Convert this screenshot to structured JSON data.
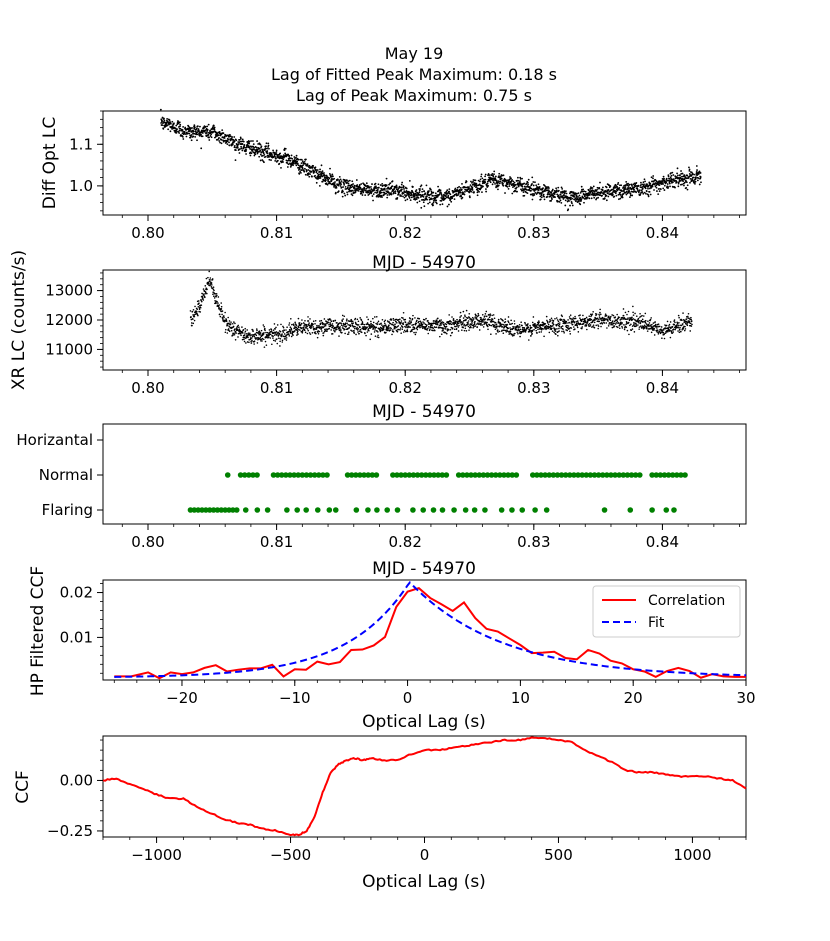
{
  "chart_data": [
    {
      "type": "scatter",
      "id": "p1",
      "title_lines": [
        "May 19",
        "Lag of Fitted Peak Maximum: 0.18 s",
        "Lag of Peak Maximum: 0.75 s"
      ],
      "ylabel": "Diff Opt LC",
      "xlabel": "MJD - 54970",
      "xlim": [
        0.7965,
        0.8465
      ],
      "ylim": [
        0.93,
        1.18
      ],
      "xticks": [
        0.8,
        0.81,
        0.82,
        0.83,
        0.84
      ],
      "xtick_labels": [
        "0.80",
        "0.81",
        "0.82",
        "0.83",
        "0.84"
      ],
      "yticks": [
        1.0,
        1.1
      ],
      "ytick_labels": [
        "1.0",
        "1.1"
      ],
      "color": "#000000",
      "trend_x": [
        0.801,
        0.803,
        0.805,
        0.807,
        0.809,
        0.811,
        0.813,
        0.815,
        0.817,
        0.819,
        0.821,
        0.823,
        0.825,
        0.827,
        0.829,
        0.831,
        0.833,
        0.835,
        0.837,
        0.839,
        0.841,
        0.843
      ],
      "trend_y": [
        1.155,
        1.13,
        1.13,
        1.1,
        1.08,
        1.065,
        1.03,
        1.0,
        0.99,
        0.99,
        0.98,
        0.97,
        0.995,
        1.015,
        1.0,
        0.985,
        0.97,
        0.985,
        0.99,
        1.0,
        1.015,
        1.025
      ],
      "n_points": 2600,
      "noise": 0.009
    },
    {
      "type": "scatter",
      "id": "p2",
      "ylabel": "XR LC (counts/s)",
      "xlabel": "MJD - 54970",
      "xlim": [
        0.7965,
        0.8465
      ],
      "ylim": [
        10300,
        13700
      ],
      "xticks": [
        0.8,
        0.81,
        0.82,
        0.83,
        0.84
      ],
      "xtick_labels": [
        "0.80",
        "0.81",
        "0.82",
        "0.83",
        "0.84"
      ],
      "yticks": [
        11000,
        12000,
        13000
      ],
      "ytick_labels": [
        "11000",
        "12000",
        "13000"
      ],
      "color": "#000000",
      "trend_x": [
        0.8033,
        0.804,
        0.8048,
        0.8053,
        0.806,
        0.8075,
        0.81,
        0.812,
        0.815,
        0.818,
        0.82,
        0.823,
        0.826,
        0.829,
        0.832,
        0.835,
        0.838,
        0.84,
        0.8423
      ],
      "trend_y": [
        12100,
        12400,
        13400,
        12700,
        11900,
        11450,
        11500,
        11750,
        11800,
        11750,
        11850,
        11800,
        12000,
        11650,
        11850,
        12000,
        11950,
        11600,
        12000
      ],
      "n_points": 2300,
      "noise": 140
    },
    {
      "type": "scatter",
      "id": "p3",
      "xlabel": "MJD - 54970",
      "xlim": [
        0.7965,
        0.8465
      ],
      "categories": [
        "Flaring",
        "Normal",
        "Horizantal"
      ],
      "xticks": [
        0.8,
        0.81,
        0.82,
        0.83,
        0.84
      ],
      "xtick_labels": [
        "0.80",
        "0.81",
        "0.82",
        "0.83",
        "0.84"
      ],
      "color": "#008000",
      "flaring_x": [
        0.8033,
        0.8036,
        0.8039,
        0.8042,
        0.8045,
        0.8048,
        0.8051,
        0.8054,
        0.8057,
        0.806,
        0.8063,
        0.8066,
        0.8069,
        0.8076,
        0.8085,
        0.8093,
        0.8108,
        0.8116,
        0.8123,
        0.8132,
        0.8141,
        0.8146,
        0.8162,
        0.8171,
        0.8178,
        0.8186,
        0.8194,
        0.8206,
        0.8214,
        0.8222,
        0.8229,
        0.8238,
        0.8247,
        0.8254,
        0.8262,
        0.8275,
        0.8283,
        0.8291,
        0.8301,
        0.831,
        0.8355,
        0.8375,
        0.8392,
        0.8403,
        0.8409
      ],
      "normal_x_start": 0.8072,
      "normal_x_end": 0.8418,
      "normal_isolated": [
        0.8062
      ],
      "normal_gaps": [
        [
          0.8085,
          0.8095
        ],
        [
          0.8142,
          0.8154
        ],
        [
          0.8178,
          0.8188
        ],
        [
          0.8232,
          0.824
        ],
        [
          0.8288,
          0.8296
        ],
        [
          0.8385,
          0.8391
        ]
      ]
    },
    {
      "type": "line",
      "id": "p4",
      "ylabel": "HP Filtered CCF",
      "xlabel": "Optical Lag (s)",
      "xlim": [
        -27,
        30
      ],
      "ylim": [
        0.0005,
        0.0228
      ],
      "xticks": [
        -20,
        -10,
        0,
        10,
        20,
        30
      ],
      "xtick_labels": [
        "−20",
        "−10",
        "0",
        "10",
        "20",
        "30"
      ],
      "yticks": [
        0.01,
        0.02
      ],
      "ytick_labels": [
        "0.01",
        "0.02"
      ],
      "legend": [
        "Correlation",
        "Fit"
      ],
      "series": [
        {
          "name": "Correlation",
          "color": "#ff0000",
          "x": [
            -26,
            -24.5,
            -23,
            -22,
            -21,
            -20,
            -19,
            -18,
            -17,
            -16,
            -15,
            -14,
            -13,
            -12,
            -11,
            -10,
            -9,
            -8,
            -7,
            -6,
            -5,
            -4,
            -3,
            -2,
            -1,
            0,
            1,
            2,
            3,
            4,
            5,
            6,
            7,
            8,
            9,
            10,
            11,
            12,
            13,
            14,
            15,
            16,
            17,
            18,
            19,
            20,
            21,
            22,
            23,
            24,
            25,
            26,
            27,
            28,
            29,
            30
          ],
          "y": [
            0.0013,
            0.0013,
            0.0022,
            0.0009,
            0.0022,
            0.0018,
            0.0022,
            0.0032,
            0.0038,
            0.0024,
            0.0028,
            0.0031,
            0.0031,
            0.0039,
            0.0013,
            0.0029,
            0.0028,
            0.0046,
            0.004,
            0.0045,
            0.0072,
            0.0073,
            0.0082,
            0.0101,
            0.0168,
            0.0202,
            0.021,
            0.0188,
            0.0174,
            0.0159,
            0.0178,
            0.0143,
            0.0119,
            0.0113,
            0.0098,
            0.0083,
            0.0065,
            0.0066,
            0.0068,
            0.0054,
            0.0051,
            0.0072,
            0.0064,
            0.0048,
            0.0042,
            0.0029,
            0.0024,
            0.0012,
            0.0025,
            0.0032,
            0.0025,
            0.001,
            0.0018,
            0.0013,
            0.0012,
            0.0012
          ]
        },
        {
          "name": "Fit",
          "color": "#0000ff",
          "model": "exponential",
          "base": 0.001,
          "amp": 0.0213,
          "center": 0.18,
          "tau_left": 5.5,
          "tau_right": 8.2
        }
      ]
    },
    {
      "type": "line",
      "id": "p5",
      "ylabel": "CCF",
      "xlabel": "Optical Lag (s)",
      "xlim": [
        -1200,
        1200
      ],
      "ylim": [
        -0.28,
        0.22
      ],
      "xticks": [
        -1000,
        -500,
        0,
        500,
        1000
      ],
      "xtick_labels": [
        "−1000",
        "−500",
        "0",
        "500",
        "1000"
      ],
      "yticks": [
        -0.25,
        0.0
      ],
      "ytick_labels": [
        "−0.25",
        "0.00"
      ],
      "series": [
        {
          "name": "CCF",
          "color": "#ff0000",
          "x": [
            -1200,
            -1150,
            -1100,
            -1050,
            -1000,
            -950,
            -900,
            -850,
            -800,
            -750,
            -700,
            -650,
            -600,
            -550,
            -500,
            -470,
            -440,
            -410,
            -380,
            -350,
            -320,
            -290,
            -260,
            -230,
            -200,
            -150,
            -100,
            -50,
            0,
            50,
            100,
            150,
            200,
            250,
            300,
            350,
            400,
            450,
            500,
            550,
            600,
            650,
            700,
            750,
            800,
            850,
            900,
            950,
            1000,
            1050,
            1100,
            1150,
            1200
          ],
          "y": [
            0.0,
            0.01,
            -0.02,
            -0.04,
            -0.07,
            -0.09,
            -0.09,
            -0.13,
            -0.16,
            -0.19,
            -0.21,
            -0.22,
            -0.24,
            -0.25,
            -0.27,
            -0.27,
            -0.25,
            -0.18,
            -0.06,
            0.04,
            0.08,
            0.1,
            0.11,
            0.1,
            0.11,
            0.1,
            0.1,
            0.13,
            0.15,
            0.15,
            0.16,
            0.17,
            0.18,
            0.19,
            0.2,
            0.2,
            0.21,
            0.21,
            0.2,
            0.19,
            0.15,
            0.12,
            0.09,
            0.05,
            0.04,
            0.04,
            0.03,
            0.02,
            0.02,
            0.02,
            0.01,
            0.0,
            -0.04
          ]
        }
      ]
    }
  ]
}
